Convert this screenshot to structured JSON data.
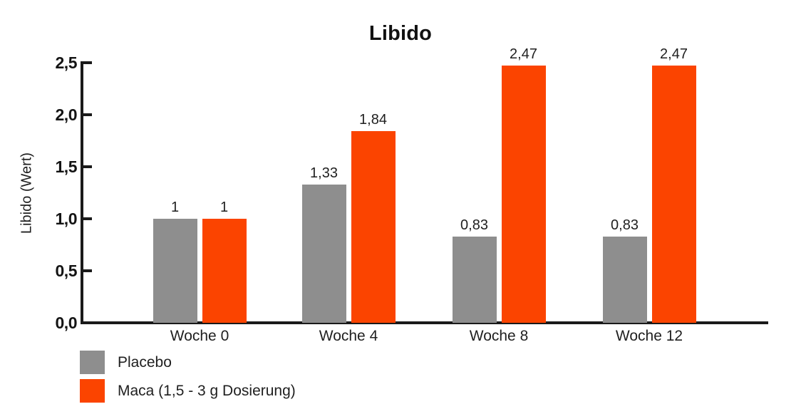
{
  "chart_data": {
    "type": "bar",
    "title": "Libido",
    "xlabel": "",
    "ylabel": "Libido (Wert)",
    "categories": [
      "Woche 0",
      "Woche 4",
      "Woche 8",
      "Woche 12"
    ],
    "series": [
      {
        "name": "Placebo",
        "color": "#8E8E8E",
        "values": [
          1,
          1.33,
          0.83,
          0.83
        ],
        "value_labels": [
          "1",
          "1,33",
          "0,83",
          "0,83"
        ]
      },
      {
        "name": "Maca (1,5 - 3 g Dosierung)",
        "color": "#FB4400",
        "values": [
          1,
          1.84,
          2.47,
          2.47
        ],
        "value_labels": [
          "1",
          "1,84",
          "2,47",
          "2,47"
        ]
      }
    ],
    "ylim": [
      0,
      2.5
    ],
    "yticks": [
      {
        "value": 0,
        "label": "0,0"
      },
      {
        "value": 0.5,
        "label": "0,5"
      },
      {
        "value": 1,
        "label": "1,0"
      },
      {
        "value": 1.5,
        "label": "1,5"
      },
      {
        "value": 2,
        "label": "2,0"
      },
      {
        "value": 2.5,
        "label": "2,5"
      }
    ],
    "grid": false,
    "legend_position": "bottom-left",
    "background_color": "#FFFFFF",
    "axis_color": "#1A1A1A",
    "text_color": "#1F1F1F"
  }
}
